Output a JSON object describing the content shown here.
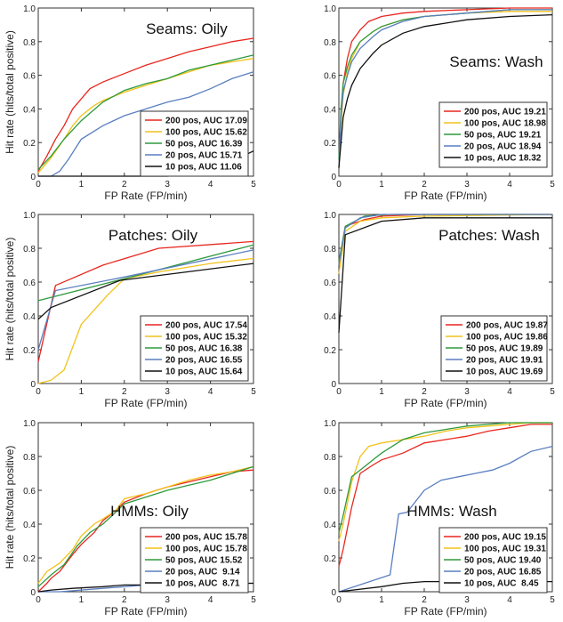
{
  "figure": {
    "colors": {
      "200 pos": "#e8271f",
      "100 pos": "#f2c21b",
      "50 pos": "#2e9a3b",
      "20 pos": "#5a7ec0",
      "10 pos": "#111111"
    }
  },
  "chart_data": [
    {
      "type": "line",
      "title": "Seams: Oily",
      "xlabel": "FP Rate (FP/min)",
      "ylabel": "Hit rate (hits/total positive)",
      "xlim": [
        0,
        5
      ],
      "ylim": [
        0,
        1
      ],
      "xticks": [
        "0",
        "1",
        "2",
        "3",
        "4",
        "5"
      ],
      "yticks": [
        "0",
        "0.2",
        "0.4",
        "0.6",
        "0.8",
        "1.0"
      ],
      "legend_position": "lower-right",
      "series": [
        {
          "name": "200 pos, AUC 17.09",
          "color_key": "200 pos",
          "x": [
            0,
            0.2,
            0.4,
            0.6,
            0.8,
            1.0,
            1.2,
            1.5,
            2.0,
            2.5,
            3.0,
            3.5,
            4.0,
            4.5,
            5.0
          ],
          "y": [
            0.03,
            0.12,
            0.22,
            0.3,
            0.4,
            0.46,
            0.52,
            0.56,
            0.61,
            0.66,
            0.7,
            0.74,
            0.77,
            0.8,
            0.82
          ]
        },
        {
          "name": "100 pos, AUC 15.62",
          "color_key": "100 pos",
          "x": [
            0,
            0.3,
            0.6,
            0.8,
            1.0,
            1.3,
            1.5,
            2.0,
            2.5,
            3.0,
            3.5,
            4.0,
            4.5,
            5.0
          ],
          "y": [
            0.02,
            0.11,
            0.22,
            0.3,
            0.36,
            0.42,
            0.45,
            0.5,
            0.54,
            0.58,
            0.62,
            0.66,
            0.68,
            0.7
          ]
        },
        {
          "name": "50 pos, AUC 16.39",
          "color_key": "50 pos",
          "x": [
            0,
            0.3,
            0.6,
            1.0,
            1.5,
            2.0,
            2.5,
            3.0,
            3.5,
            4.0,
            4.5,
            5.0
          ],
          "y": [
            0.04,
            0.12,
            0.22,
            0.33,
            0.44,
            0.51,
            0.55,
            0.58,
            0.63,
            0.66,
            0.69,
            0.72
          ]
        },
        {
          "name": "20 pos, AUC 15.71",
          "color_key": "20 pos",
          "x": [
            0,
            0.3,
            0.5,
            0.7,
            1.0,
            1.5,
            2.0,
            2.5,
            3.0,
            3.5,
            4.0,
            4.5,
            5.0
          ],
          "y": [
            0,
            0,
            0.03,
            0.1,
            0.22,
            0.3,
            0.36,
            0.4,
            0.44,
            0.47,
            0.52,
            0.58,
            0.62
          ]
        },
        {
          "name": "10 pos, AUC 11.06",
          "color_key": "10 pos",
          "x": [
            0,
            1.0,
            2.0,
            3.0,
            4.0,
            4.6,
            5.0
          ],
          "y": [
            0,
            0,
            0,
            0,
            0.02,
            0.1,
            0.15
          ]
        }
      ]
    },
    {
      "type": "line",
      "title": "Seams: Wash",
      "xlabel": "FP Rate (FP/min)",
      "ylabel": "",
      "xlim": [
        0,
        5
      ],
      "ylim": [
        0,
        1
      ],
      "xticks": [
        "0",
        "1",
        "2",
        "3",
        "4",
        "5"
      ],
      "yticks": [
        "0",
        "0.2",
        "0.4",
        "0.6",
        "0.8",
        "1.0"
      ],
      "legend_position": "lower-right",
      "series": [
        {
          "name": "200 pos, AUC 19.21",
          "color_key": "200 pos",
          "x": [
            0,
            0.05,
            0.1,
            0.2,
            0.3,
            0.5,
            0.7,
            1.0,
            1.5,
            2.0,
            3.0,
            4.0,
            5.0
          ],
          "y": [
            0.05,
            0.35,
            0.55,
            0.7,
            0.8,
            0.87,
            0.92,
            0.95,
            0.97,
            0.98,
            0.99,
            1.0,
            1.0
          ]
        },
        {
          "name": "100 pos, AUC 18.98",
          "color_key": "100 pos",
          "x": [
            0,
            0.05,
            0.1,
            0.2,
            0.3,
            0.5,
            0.8,
            1.0,
            1.5,
            2.0,
            3.0,
            4.0,
            5.0
          ],
          "y": [
            0.05,
            0.3,
            0.48,
            0.62,
            0.7,
            0.8,
            0.86,
            0.89,
            0.93,
            0.95,
            0.97,
            0.98,
            0.98
          ]
        },
        {
          "name": "50 pos, AUC 19.21",
          "color_key": "50 pos",
          "x": [
            0,
            0.05,
            0.1,
            0.2,
            0.3,
            0.5,
            0.8,
            1.0,
            1.5,
            2.0,
            3.0,
            4.0,
            5.0
          ],
          "y": [
            0.1,
            0.4,
            0.55,
            0.65,
            0.72,
            0.8,
            0.86,
            0.89,
            0.93,
            0.95,
            0.97,
            0.99,
            0.99
          ]
        },
        {
          "name": "20 pos, AUC 18.94",
          "color_key": "20 pos",
          "x": [
            0,
            0.05,
            0.1,
            0.2,
            0.3,
            0.5,
            0.8,
            1.0,
            1.5,
            2.0,
            3.0,
            4.0,
            5.0
          ],
          "y": [
            0.05,
            0.35,
            0.5,
            0.6,
            0.68,
            0.76,
            0.83,
            0.87,
            0.92,
            0.95,
            0.97,
            0.99,
            0.99
          ]
        },
        {
          "name": "10 pos, AUC 18.32",
          "color_key": "10 pos",
          "x": [
            0,
            0.05,
            0.1,
            0.2,
            0.3,
            0.5,
            0.8,
            1.0,
            1.5,
            2.0,
            3.0,
            4.0,
            5.0
          ],
          "y": [
            0.05,
            0.2,
            0.35,
            0.46,
            0.54,
            0.64,
            0.73,
            0.78,
            0.85,
            0.89,
            0.93,
            0.95,
            0.96
          ]
        }
      ]
    },
    {
      "type": "line",
      "title": "Patches: Oily",
      "xlabel": "FP Rate (FP/min)",
      "ylabel": "Hit rate (hits/total positive)",
      "xlim": [
        0,
        5
      ],
      "ylim": [
        0,
        1
      ],
      "xticks": [
        "0",
        "1",
        "2",
        "3",
        "4",
        "5"
      ],
      "yticks": [
        "0",
        "0.2",
        "0.4",
        "0.6",
        "0.8",
        "1.0"
      ],
      "legend_position": "lower-right",
      "series": [
        {
          "name": "200 pos, AUC 17.54",
          "color_key": "200 pos",
          "x": [
            0,
            0.4,
            1.5,
            2.8,
            5.0
          ],
          "y": [
            0.13,
            0.58,
            0.7,
            0.8,
            0.84
          ]
        },
        {
          "name": "100 pos, AUC 15.32",
          "color_key": "100 pos",
          "x": [
            0,
            0.3,
            0.6,
            1.0,
            1.6,
            2.0,
            2.8,
            4.0,
            5.0
          ],
          "y": [
            0,
            0.02,
            0.08,
            0.35,
            0.52,
            0.62,
            0.66,
            0.71,
            0.74
          ]
        },
        {
          "name": "50 pos, AUC 16.38",
          "color_key": "50 pos",
          "x": [
            0,
            2.0,
            5.0
          ],
          "y": [
            0.49,
            0.62,
            0.82
          ]
        },
        {
          "name": "20 pos, AUC 16.55",
          "color_key": "20 pos",
          "x": [
            0,
            0.4,
            2.0,
            5.0
          ],
          "y": [
            0.2,
            0.55,
            0.63,
            0.79
          ]
        },
        {
          "name": "10 pos, AUC 15.64",
          "color_key": "10 pos",
          "x": [
            0,
            0.3,
            1.9,
            5.0
          ],
          "y": [
            0.38,
            0.45,
            0.61,
            0.71
          ]
        }
      ]
    },
    {
      "type": "line",
      "title": "Patches: Wash",
      "xlabel": "FP Rate (FP/min)",
      "ylabel": "",
      "xlim": [
        0,
        5
      ],
      "ylim": [
        0,
        1
      ],
      "xticks": [
        "0",
        "1",
        "2",
        "3",
        "4",
        "5"
      ],
      "yticks": [
        "0",
        "0.2",
        "0.4",
        "0.6",
        "0.8",
        "1.0"
      ],
      "legend_position": "lower-right",
      "series": [
        {
          "name": "200 pos, AUC 19.87",
          "color_key": "200 pos",
          "x": [
            0,
            0.15,
            0.6,
            1.0,
            2.0,
            5.0
          ],
          "y": [
            0.7,
            0.93,
            0.97,
            0.99,
            1.0,
            1.0
          ]
        },
        {
          "name": "100 pos, AUC 19.86",
          "color_key": "100 pos",
          "x": [
            0,
            0.15,
            0.5,
            1.0,
            2.0,
            5.0
          ],
          "y": [
            0.65,
            0.9,
            0.96,
            0.98,
            0.99,
            1.0
          ]
        },
        {
          "name": "50 pos, AUC 19.89",
          "color_key": "50 pos",
          "x": [
            0,
            0.15,
            0.6,
            1.2,
            5.0
          ],
          "y": [
            0.72,
            0.93,
            0.99,
            1.0,
            1.0
          ]
        },
        {
          "name": "20 pos, AUC 19.91",
          "color_key": "20 pos",
          "x": [
            0,
            0.15,
            0.5,
            1.0,
            5.0
          ],
          "y": [
            0.7,
            0.92,
            0.98,
            1.0,
            1.0
          ]
        },
        {
          "name": "10 pos, AUC 19.69",
          "color_key": "10 pos",
          "x": [
            0,
            0.15,
            1.0,
            2.0,
            5.0
          ],
          "y": [
            0.3,
            0.88,
            0.96,
            0.98,
            0.98
          ]
        }
      ]
    },
    {
      "type": "line",
      "title": "HMMs: Oily",
      "xlabel": "FP Rate (FP/min)",
      "ylabel": "Hit rate (hits/total positive)",
      "xlim": [
        0,
        5
      ],
      "ylim": [
        0,
        1
      ],
      "xticks": [
        "0",
        "1",
        "2",
        "3",
        "4",
        "5"
      ],
      "yticks": [
        "0",
        "0.2",
        "0.4",
        "0.6",
        "0.8",
        "1.0"
      ],
      "legend_position": "lower-right",
      "series": [
        {
          "name": "200 pos, AUC 15.78",
          "color_key": "200 pos",
          "x": [
            0,
            0.2,
            0.3,
            0.5,
            0.8,
            1.0,
            1.3,
            1.5,
            1.8,
            2.0,
            2.5,
            3.0,
            3.5,
            4.0,
            4.5,
            5.0
          ],
          "y": [
            0,
            0.05,
            0.08,
            0.12,
            0.22,
            0.28,
            0.35,
            0.42,
            0.48,
            0.53,
            0.58,
            0.62,
            0.65,
            0.68,
            0.71,
            0.72
          ]
        },
        {
          "name": "100 pos, AUC 15.78",
          "color_key": "100 pos",
          "x": [
            0,
            0.2,
            0.5,
            0.8,
            1.0,
            1.3,
            1.5,
            1.8,
            2.0,
            2.5,
            3.0,
            3.5,
            4.0,
            4.5,
            5.0
          ],
          "y": [
            0.05,
            0.12,
            0.17,
            0.25,
            0.33,
            0.4,
            0.43,
            0.48,
            0.55,
            0.58,
            0.62,
            0.66,
            0.69,
            0.71,
            0.74
          ]
        },
        {
          "name": "50 pos, AUC 15.52",
          "color_key": "50 pos",
          "x": [
            0,
            0.3,
            0.6,
            0.9,
            1.2,
            1.5,
            1.8,
            2.0,
            2.5,
            3.0,
            3.5,
            4.0,
            4.5,
            5.0
          ],
          "y": [
            0.03,
            0.1,
            0.16,
            0.27,
            0.35,
            0.4,
            0.47,
            0.52,
            0.56,
            0.6,
            0.63,
            0.66,
            0.7,
            0.74
          ]
        },
        {
          "name": "20 pos, AUC  9.14",
          "color_key": "20 pos",
          "x": [
            0,
            0.5,
            1.0,
            1.5,
            2.0,
            2.5,
            3.0,
            3.5,
            4.0,
            5.0
          ],
          "y": [
            0,
            0,
            0.01,
            0.02,
            0.03,
            0.04,
            0.04,
            0.05,
            0.05,
            0.05
          ]
        },
        {
          "name": "10 pos, AUC  8.71",
          "color_key": "10 pos",
          "x": [
            0,
            0.3,
            0.8,
            1.5,
            2.0,
            2.5,
            3.0,
            4.0,
            5.0
          ],
          "y": [
            0,
            0.01,
            0.02,
            0.03,
            0.04,
            0.04,
            0.05,
            0.05,
            0.05
          ]
        }
      ]
    },
    {
      "type": "line",
      "title": "HMMs: Wash",
      "xlabel": "FP Rate (FP/min)",
      "ylabel": "",
      "xlim": [
        0,
        5
      ],
      "ylim": [
        0,
        1
      ],
      "xticks": [
        "0",
        "1",
        "2",
        "3",
        "4",
        "5"
      ],
      "yticks": [
        "0",
        "0.2",
        "0.4",
        "0.6",
        "0.8",
        "1.0"
      ],
      "legend_position": "lower-right",
      "series": [
        {
          "name": "200 pos, AUC 19.15",
          "color_key": "200 pos",
          "x": [
            0,
            0.1,
            0.3,
            0.5,
            0.8,
            1.0,
            1.5,
            2.0,
            2.5,
            3.0,
            3.5,
            4.0,
            4.5,
            5.0
          ],
          "y": [
            0.15,
            0.25,
            0.5,
            0.7,
            0.75,
            0.78,
            0.82,
            0.88,
            0.9,
            0.92,
            0.95,
            0.97,
            0.99,
            0.99
          ]
        },
        {
          "name": "100 pos, AUC 19.31",
          "color_key": "100 pos",
          "x": [
            0,
            0.1,
            0.3,
            0.5,
            0.7,
            1.0,
            1.5,
            2.0,
            2.5,
            3.0,
            3.5,
            4.0,
            4.5,
            5.0
          ],
          "y": [
            0.3,
            0.4,
            0.65,
            0.8,
            0.86,
            0.88,
            0.9,
            0.92,
            0.95,
            0.97,
            0.98,
            0.99,
            1.0,
            1.0
          ]
        },
        {
          "name": "50 pos, AUC 19.40",
          "color_key": "50 pos",
          "x": [
            0,
            0.1,
            0.3,
            0.5,
            0.8,
            1.0,
            1.5,
            2.0,
            2.5,
            3.0,
            3.5,
            4.0,
            5.0
          ],
          "y": [
            0.35,
            0.45,
            0.68,
            0.72,
            0.78,
            0.82,
            0.9,
            0.94,
            0.96,
            0.98,
            0.99,
            1.0,
            1.0
          ]
        },
        {
          "name": "20 pos, AUC 16.85",
          "color_key": "20 pos",
          "x": [
            0,
            1.2,
            1.4,
            1.6,
            2.0,
            2.4,
            2.8,
            3.2,
            3.6,
            4.0,
            4.5,
            5.0
          ],
          "y": [
            0,
            0.1,
            0.46,
            0.47,
            0.6,
            0.66,
            0.68,
            0.7,
            0.72,
            0.76,
            0.83,
            0.86
          ]
        },
        {
          "name": "10 pos, AUC  8.45",
          "color_key": "10 pos",
          "x": [
            0,
            1.0,
            1.5,
            2.0,
            2.5,
            3.0,
            4.0,
            5.0
          ],
          "y": [
            0,
            0.03,
            0.05,
            0.06,
            0.06,
            0.06,
            0.06,
            0.06
          ]
        }
      ]
    }
  ]
}
